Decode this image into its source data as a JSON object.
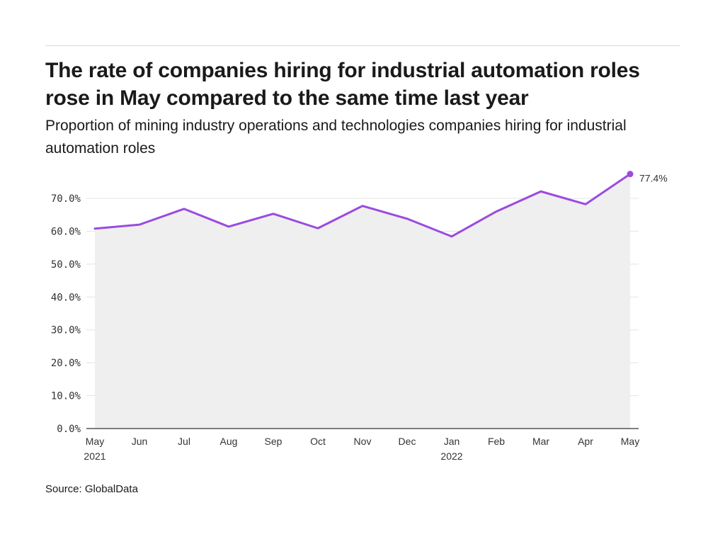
{
  "title": "The rate of companies hiring for industrial automation roles rose in May compared to the same time last year",
  "subtitle": "Proportion of mining industry operations and technologies companies hiring for industrial automation roles",
  "source": "Source: GlobalData",
  "colors": {
    "line": "#9b4be0",
    "area": "#efefef",
    "grid": "#e3e3e3",
    "axis": "#333333"
  },
  "chart_data": {
    "type": "area",
    "title": "The rate of companies hiring for industrial automation roles rose in May compared to the same time last year",
    "subtitle": "Proportion of mining industry operations and technologies companies hiring for industrial automation roles",
    "xlabel": "",
    "ylabel": "",
    "ylim": [
      0,
      70
    ],
    "y_ticks": [
      0,
      10,
      20,
      30,
      40,
      50,
      60,
      70
    ],
    "y_tick_labels": [
      "0.0%",
      "10.0%",
      "20.0%",
      "30.0%",
      "40.0%",
      "50.0%",
      "60.0%",
      "70.0%"
    ],
    "grid": true,
    "x": [
      "2021-05",
      "2021-06",
      "2021-07",
      "2021-08",
      "2021-09",
      "2021-10",
      "2021-11",
      "2021-12",
      "2022-01",
      "2022-02",
      "2022-03",
      "2022-04",
      "2022-05"
    ],
    "x_tick_labels": [
      "May",
      "Jun",
      "Jul",
      "Aug",
      "Sep",
      "Oct",
      "Nov",
      "Dec",
      "Jan",
      "Feb",
      "Mar",
      "Apr",
      "May"
    ],
    "x_tick_sublabels": [
      "2021",
      "",
      "",
      "",
      "",
      "",
      "",
      "",
      "2022",
      "",
      "",
      "",
      ""
    ],
    "series": [
      {
        "values": [
          60.8,
          62.0,
          66.8,
          61.4,
          65.3,
          60.9,
          67.7,
          63.8,
          58.4,
          66.0,
          72.1,
          68.2,
          77.4
        ]
      }
    ],
    "annotations": [
      {
        "index": 12,
        "text": "77.4%"
      }
    ]
  }
}
